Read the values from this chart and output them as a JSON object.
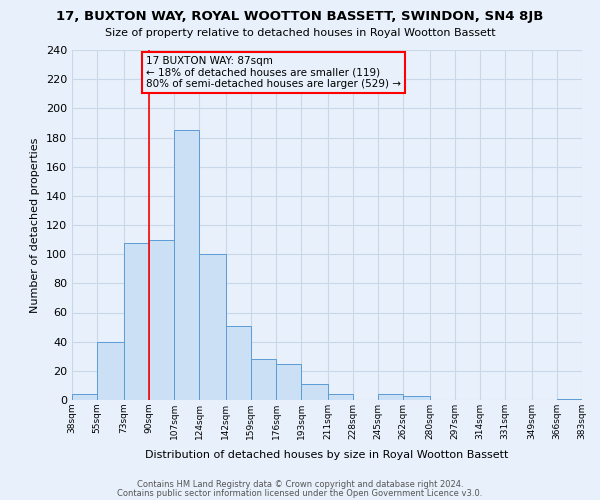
{
  "title": "17, BUXTON WAY, ROYAL WOOTTON BASSETT, SWINDON, SN4 8JB",
  "subtitle": "Size of property relative to detached houses in Royal Wootton Bassett",
  "xlabel": "Distribution of detached houses by size in Royal Wootton Bassett",
  "ylabel": "Number of detached properties",
  "bin_edges": [
    38,
    55,
    73,
    90,
    107,
    124,
    142,
    159,
    176,
    193,
    211,
    228,
    245,
    262,
    280,
    297,
    314,
    331,
    349,
    366,
    383
  ],
  "bin_labels": [
    "38sqm",
    "55sqm",
    "73sqm",
    "90sqm",
    "107sqm",
    "124sqm",
    "142sqm",
    "159sqm",
    "176sqm",
    "193sqm",
    "211sqm",
    "228sqm",
    "245sqm",
    "262sqm",
    "280sqm",
    "297sqm",
    "314sqm",
    "331sqm",
    "349sqm",
    "366sqm",
    "383sqm"
  ],
  "counts": [
    4,
    40,
    108,
    110,
    185,
    100,
    51,
    28,
    25,
    11,
    4,
    0,
    4,
    3,
    0,
    0,
    0,
    0,
    0,
    1
  ],
  "bar_color": "#cce0f5",
  "bar_edge_color": "#5b9bd5",
  "vline_x": 90,
  "vline_color": "red",
  "annotation_text": "17 BUXTON WAY: 87sqm\n← 18% of detached houses are smaller (119)\n80% of semi-detached houses are larger (529) →",
  "annotation_box_edgecolor": "red",
  "ylim": [
    0,
    240
  ],
  "yticks": [
    0,
    20,
    40,
    60,
    80,
    100,
    120,
    140,
    160,
    180,
    200,
    220,
    240
  ],
  "footnote1": "Contains HM Land Registry data © Crown copyright and database right 2024.",
  "footnote2": "Contains public sector information licensed under the Open Government Licence v3.0.",
  "bg_color": "#e8f1fb",
  "grid_color": "#c8d8e8"
}
